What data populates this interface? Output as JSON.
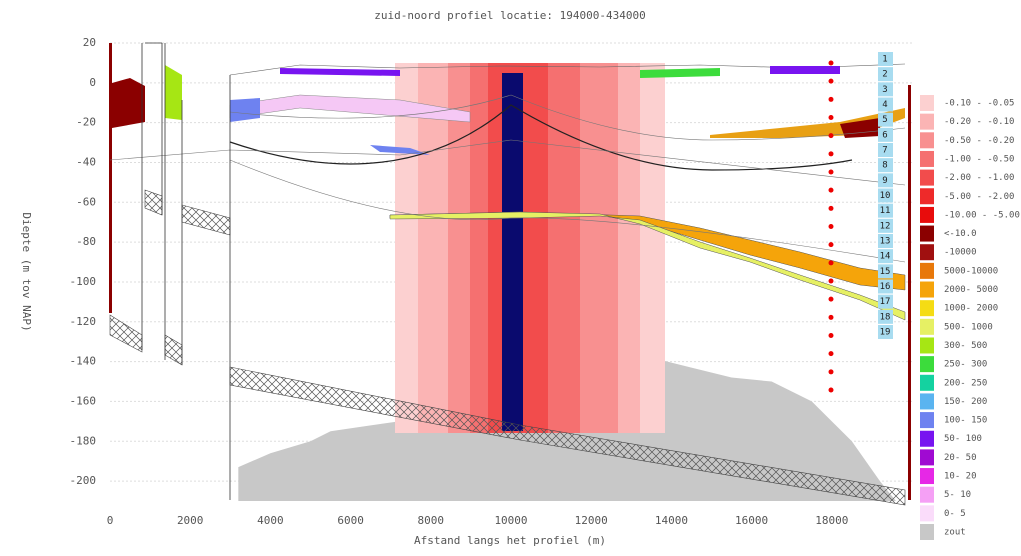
{
  "chart_data": {
    "type": "profile",
    "title": "zuid-noord profiel locatie: 194000-434000",
    "x_label": "Afstand langs het profiel (m)",
    "y_label": "Diepte (m tov NAP)",
    "xlim": [
      0,
      20000
    ],
    "ylim": [
      -210,
      20
    ],
    "xticks": [
      0,
      2000,
      4000,
      6000,
      8000,
      10000,
      12000,
      14000,
      16000,
      18000
    ],
    "yticks": [
      20,
      0,
      -20,
      -40,
      -60,
      -80,
      -100,
      -120,
      -140,
      -160,
      -180,
      -200
    ],
    "grid": true,
    "layer_labels": [
      "1",
      "2",
      "3",
      "4",
      "5",
      "6",
      "7",
      "8",
      "9",
      "10",
      "11",
      "12",
      "13",
      "14",
      "15",
      "16",
      "17",
      "18",
      "19"
    ],
    "zout": {
      "name": "zout",
      "color": "#c8c8c8",
      "x": [
        3200,
        3200,
        4000,
        5000,
        5500,
        6500,
        7200,
        10200,
        11000,
        11500,
        12000,
        13000,
        13500,
        14500,
        15500,
        16500,
        17500,
        18500,
        19200,
        19600
      ],
      "values": [
        -210,
        -193,
        -186,
        -180,
        -175,
        -172,
        -170,
        -172,
        -162,
        -150,
        -139,
        -137,
        -138,
        -143,
        -148,
        -150,
        -160,
        -180,
        -200,
        -210
      ]
    },
    "series": [
      {
        "name": "-0.10 - -0.05",
        "color": "#fcd0d0"
      },
      {
        "name": "-0.20 - -0.10",
        "color": "#fbb4b4"
      },
      {
        "name": "-0.50 - -0.20",
        "color": "#f89090"
      },
      {
        "name": "-1.00 - -0.50",
        "color": "#f57070"
      },
      {
        "name": "-2.00 - -1.00",
        "color": "#f24c4c"
      },
      {
        "name": "-5.00 - -2.00",
        "color": "#ee2a2a"
      },
      {
        "name": "-10.00 - -5.00",
        "color": "#e80c0c"
      },
      {
        "name": "<-10.0",
        "color": "#8b0000"
      },
      {
        "name": "-10000",
        "color": "#a01010"
      },
      {
        "name": "5000-10000",
        "color": "#e8780a"
      },
      {
        "name": "2000- 5000",
        "color": "#f5a40a"
      },
      {
        "name": "1000- 2000",
        "color": "#f5dc14"
      },
      {
        "name": "500- 1000",
        "color": "#e6f064"
      },
      {
        "name": "300- 500",
        "color": "#a6e614"
      },
      {
        "name": "250- 300",
        "color": "#3cdc3c"
      },
      {
        "name": "200- 250",
        "color": "#14d2a0"
      },
      {
        "name": "150- 200",
        "color": "#5ab4f0"
      },
      {
        "name": "100- 150",
        "color": "#6e82f0"
      },
      {
        "name": "50- 100",
        "color": "#7814f0"
      },
      {
        "name": "20- 50",
        "color": "#a00ad2"
      },
      {
        "name": "10- 20",
        "color": "#e628e6"
      },
      {
        "name": "5- 10",
        "color": "#f5a0f5"
      },
      {
        "name": "0- 5",
        "color": "#fadcfa"
      },
      {
        "name": "zout",
        "color": "#c8c8c8"
      }
    ]
  }
}
